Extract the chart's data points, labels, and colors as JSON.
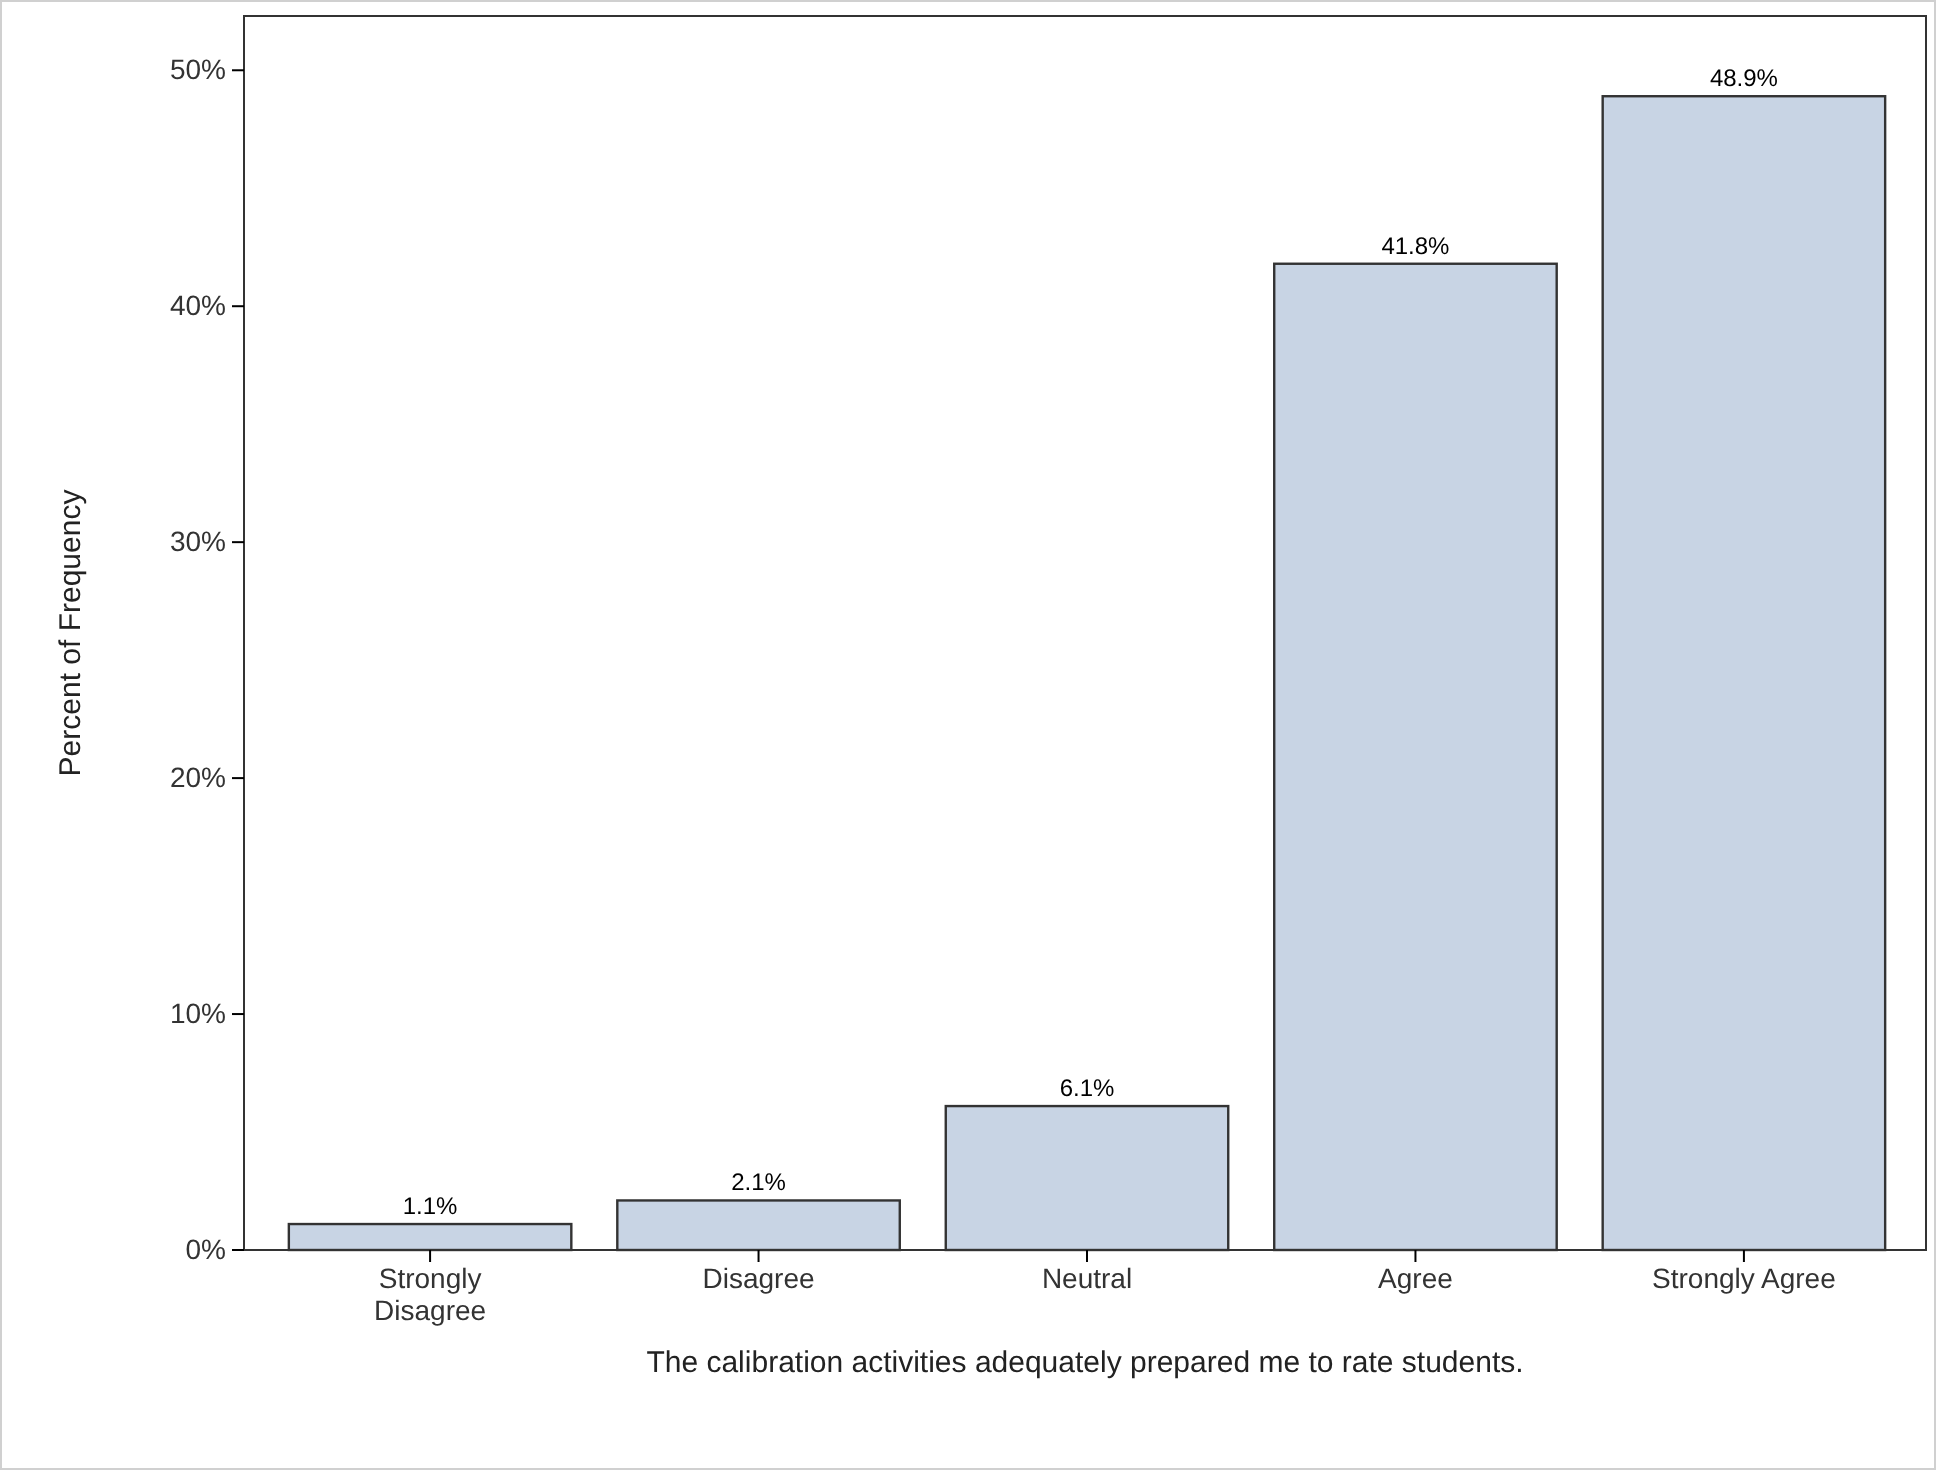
{
  "chart_data": {
    "type": "bar",
    "xlabel": "The calibration activities adequately prepared me to rate students.",
    "ylabel": "Percent of Frequency",
    "categories": [
      "Strongly Disagree",
      "Disagree",
      "Neutral",
      "Agree",
      "Strongly Agree"
    ],
    "values": [
      1.1,
      2.1,
      6.1,
      41.8,
      48.9
    ],
    "value_labels": [
      "1.1%",
      "2.1%",
      "6.1%",
      "41.8%",
      "48.9%"
    ],
    "color": "#c8d4e4",
    "ylim": [
      0,
      52.3
    ],
    "yticks": [
      {
        "value": 0,
        "label": "0%"
      },
      {
        "value": 10,
        "label": "10%"
      },
      {
        "value": 20,
        "label": "20%"
      },
      {
        "value": 30,
        "label": "30%"
      },
      {
        "value": 40,
        "label": "40%"
      },
      {
        "value": 50,
        "label": "50%"
      }
    ],
    "grid": false
  }
}
